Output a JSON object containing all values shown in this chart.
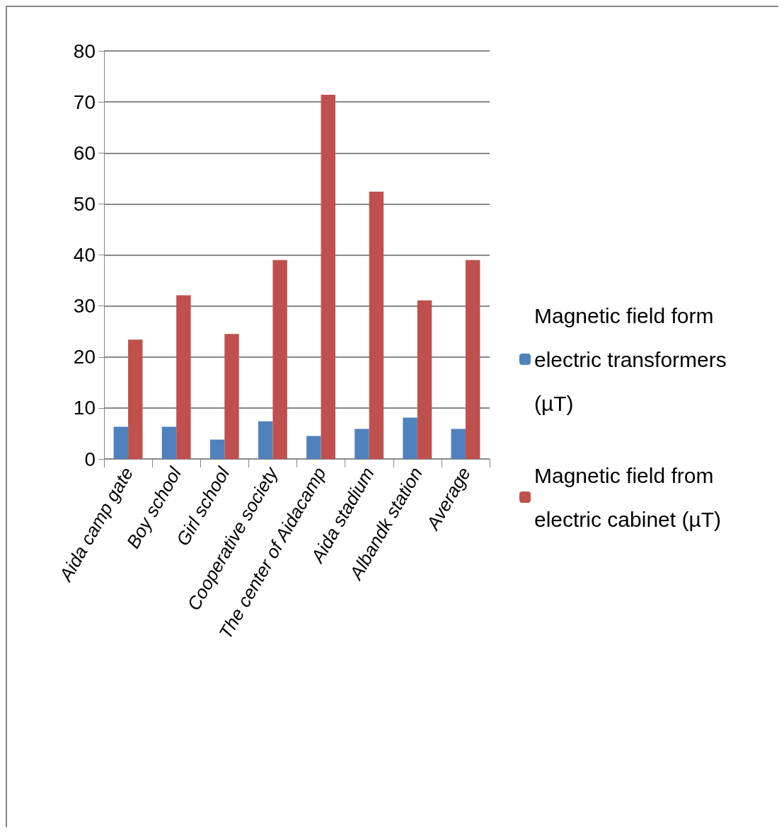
{
  "chart_data": {
    "type": "bar",
    "categories": [
      "Aida camp gate",
      "Boy school",
      "Girl school",
      "Cooperative society",
      "The center of Aidacamp",
      "Aida stadium",
      "Albandk station",
      "Average"
    ],
    "series": [
      {
        "name": "Magnetic field form electric transformers (µT)",
        "color": "#4f81bd",
        "values": [
          6.3,
          6.3,
          3.8,
          7.4,
          4.5,
          5.9,
          8.1,
          5.9
        ]
      },
      {
        "name": "Magnetic field from electric cabinet (µT)",
        "color": "#c0504d",
        "values": [
          23.4,
          32.1,
          24.5,
          39.0,
          71.4,
          52.4,
          31.1,
          39.0
        ]
      }
    ],
    "ylim": [
      0,
      80
    ],
    "yticks": [
      0,
      10,
      20,
      30,
      40,
      50,
      60,
      70,
      80
    ],
    "grid": "y",
    "legend": "right"
  }
}
